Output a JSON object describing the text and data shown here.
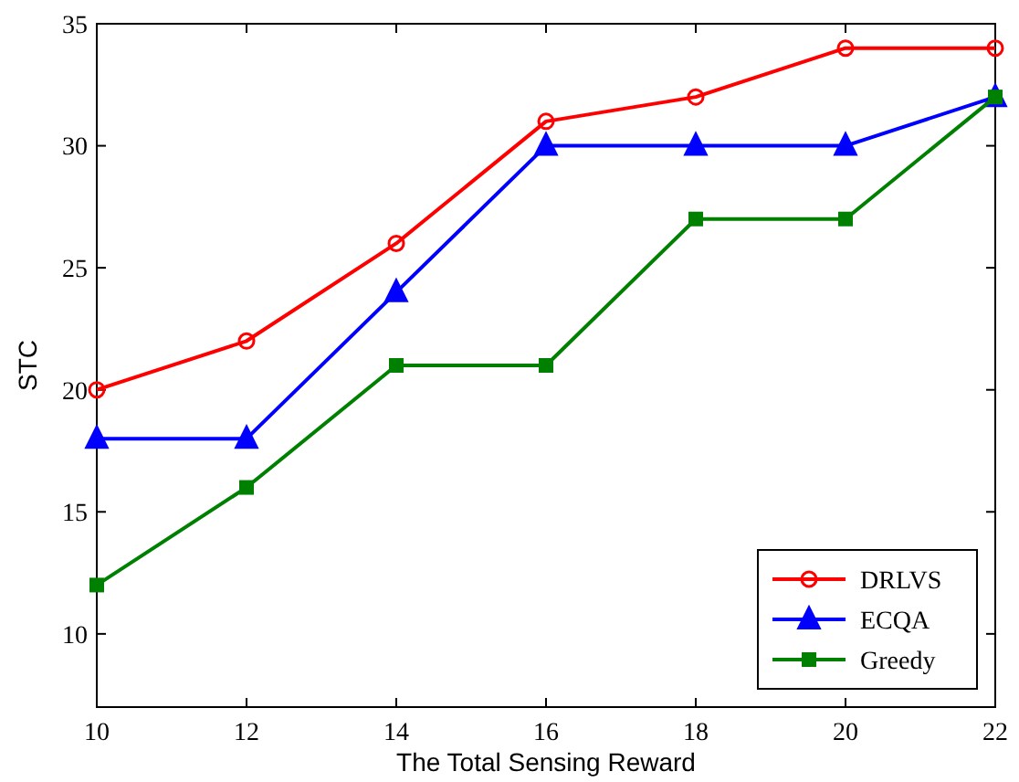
{
  "chart_data": {
    "type": "line",
    "xlabel": "The Total Sensing Reward",
    "ylabel": "STC",
    "x": [
      10,
      12,
      14,
      16,
      18,
      20,
      22
    ],
    "series": [
      {
        "name": "DRLVS",
        "color": "#ff0000",
        "marker": "circle",
        "values": [
          20,
          22,
          26,
          31,
          32,
          34,
          34
        ]
      },
      {
        "name": "ECQA",
        "color": "#0000ff",
        "marker": "triangle",
        "values": [
          18,
          18,
          24,
          30,
          30,
          30,
          32
        ]
      },
      {
        "name": "Greedy",
        "color": "#008000",
        "marker": "square",
        "values": [
          12,
          16,
          21,
          21,
          27,
          27,
          32
        ]
      }
    ],
    "xlim": [
      10,
      22
    ],
    "xticks": [
      10,
      12,
      14,
      16,
      18,
      20,
      22
    ],
    "ylim": [
      7,
      35
    ],
    "yticks": [
      10,
      15,
      20,
      25,
      30,
      35
    ],
    "grid": false,
    "legend": "bottom right",
    "line_style": "solid"
  }
}
